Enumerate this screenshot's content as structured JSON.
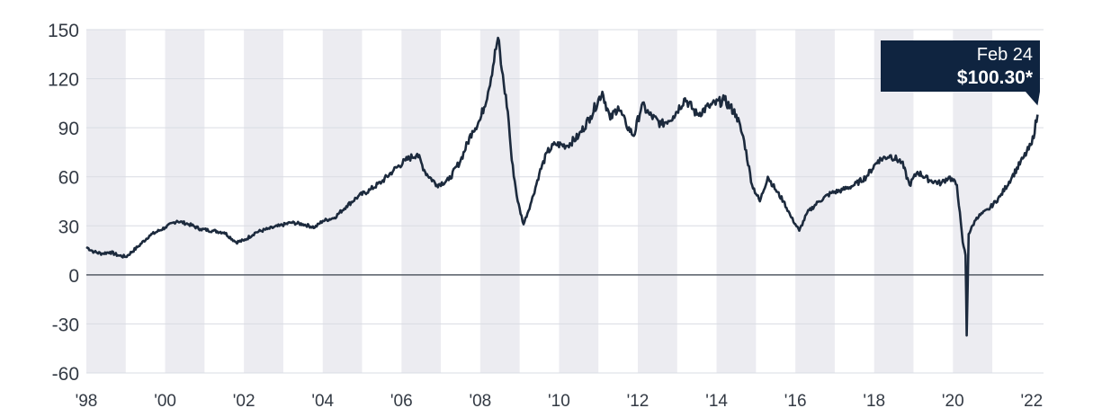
{
  "chart_data": {
    "type": "line",
    "title": "",
    "xlabel": "",
    "ylabel": "",
    "ylim": [
      -60,
      150
    ],
    "yticks": [
      "150",
      "120",
      "90",
      "60",
      "30",
      "0",
      "-30",
      "-60"
    ],
    "xticks": [
      "'98",
      "'00",
      "'02",
      "'04",
      "'06",
      "'08",
      "'10",
      "'12",
      "'14",
      "'16",
      "'18",
      "'20",
      "'22"
    ],
    "grid": true,
    "alternating_year_bands": true,
    "line_color": "#1c2a3d",
    "band_color": "#ececf1",
    "zero_line_color": "#555c66",
    "series": [
      {
        "name": "",
        "x": [
          1998.0,
          1998.2,
          1998.4,
          1998.6,
          1998.8,
          1999.0,
          1999.3,
          1999.6,
          2000.0,
          2000.3,
          2000.6,
          2000.9,
          2001.2,
          2001.5,
          2001.8,
          2002.0,
          2002.3,
          2002.6,
          2002.9,
          2003.2,
          2003.5,
          2003.8,
          2004.0,
          2004.3,
          2004.6,
          2004.9,
          2005.2,
          2005.5,
          2005.8,
          2006.1,
          2006.4,
          2006.6,
          2006.9,
          2007.2,
          2007.5,
          2007.8,
          2008.0,
          2008.2,
          2008.45,
          2008.55,
          2008.7,
          2008.8,
          2008.95,
          2009.1,
          2009.3,
          2009.5,
          2009.7,
          2009.9,
          2010.2,
          2010.5,
          2010.8,
          2011.1,
          2011.3,
          2011.5,
          2011.7,
          2011.9,
          2012.1,
          2012.3,
          2012.6,
          2012.9,
          2013.2,
          2013.5,
          2013.8,
          2014.2,
          2014.5,
          2014.7,
          2014.9,
          2015.1,
          2015.3,
          2015.5,
          2015.7,
          2015.9,
          2016.1,
          2016.3,
          2016.6,
          2016.9,
          2017.2,
          2017.5,
          2017.8,
          2018.1,
          2018.4,
          2018.7,
          2018.9,
          2019.1,
          2019.4,
          2019.7,
          2019.9,
          2020.1,
          2020.25,
          2020.32,
          2020.35,
          2020.4,
          2020.6,
          2020.9,
          2021.2,
          2021.5,
          2021.8,
          2022.0,
          2022.15
        ],
        "values": [
          17,
          14,
          13,
          14,
          12,
          11,
          17,
          24,
          29,
          33,
          31,
          28,
          27,
          26,
          20,
          21,
          26,
          28,
          30,
          32,
          31,
          29,
          33,
          35,
          42,
          48,
          52,
          57,
          64,
          70,
          74,
          63,
          55,
          58,
          70,
          88,
          95,
          112,
          145,
          125,
          100,
          70,
          45,
          31,
          45,
          62,
          75,
          80,
          79,
          85,
          97,
          112,
          95,
          103,
          92,
          85,
          104,
          98,
          92,
          97,
          108,
          98,
          103,
          107,
          98,
          82,
          55,
          45,
          60,
          52,
          45,
          35,
          27,
          38,
          45,
          50,
          52,
          55,
          60,
          70,
          73,
          69,
          55,
          63,
          58,
          56,
          60,
          55,
          20,
          12,
          -37,
          25,
          35,
          40,
          48,
          60,
          72,
          80,
          98
        ]
      }
    ],
    "annotation": {
      "line1": "Feb 24",
      "line2": "$100.30*",
      "x": 2022.15,
      "y": 100.3,
      "bg_color": "#0f2440"
    }
  }
}
